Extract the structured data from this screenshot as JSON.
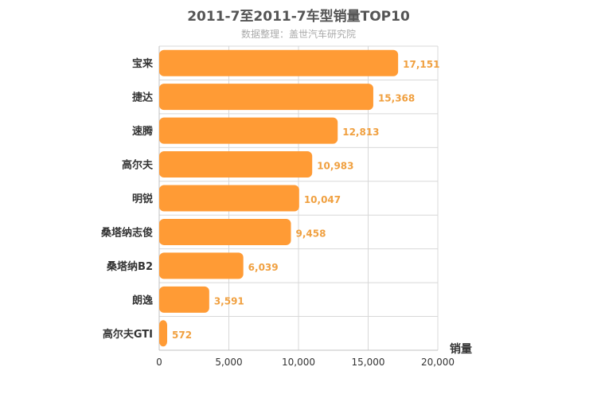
{
  "colors": {
    "bar": "#ff9b35",
    "value_label": "#f0a040",
    "grid": "#d8d8d8"
  },
  "chart_data": {
    "type": "bar",
    "orientation": "horizontal",
    "title": "2011-7至2011-7车型销量TOP10",
    "subtitle": "数据整理：盖世汽车研究院",
    "categories": [
      "宝来",
      "捷达",
      "速腾",
      "高尔夫",
      "明锐",
      "桑塔纳志俊",
      "桑塔纳B2",
      "朗逸",
      "高尔夫GTI"
    ],
    "values": [
      17151,
      15368,
      12813,
      10983,
      10047,
      9458,
      6039,
      3591,
      572
    ],
    "value_labels": [
      "17,151",
      "15,368",
      "12,813",
      "10,983",
      "10,047",
      "9,458",
      "6,039",
      "3,591",
      "572"
    ],
    "xlabel": "销量",
    "ylabel": "",
    "xlim": [
      0,
      20000
    ],
    "ticks": [
      0,
      5000,
      10000,
      15000,
      20000
    ],
    "tick_labels": [
      "0",
      "5,000",
      "10,000",
      "15,000",
      "20,000"
    ],
    "grid": true,
    "legend": "none"
  }
}
